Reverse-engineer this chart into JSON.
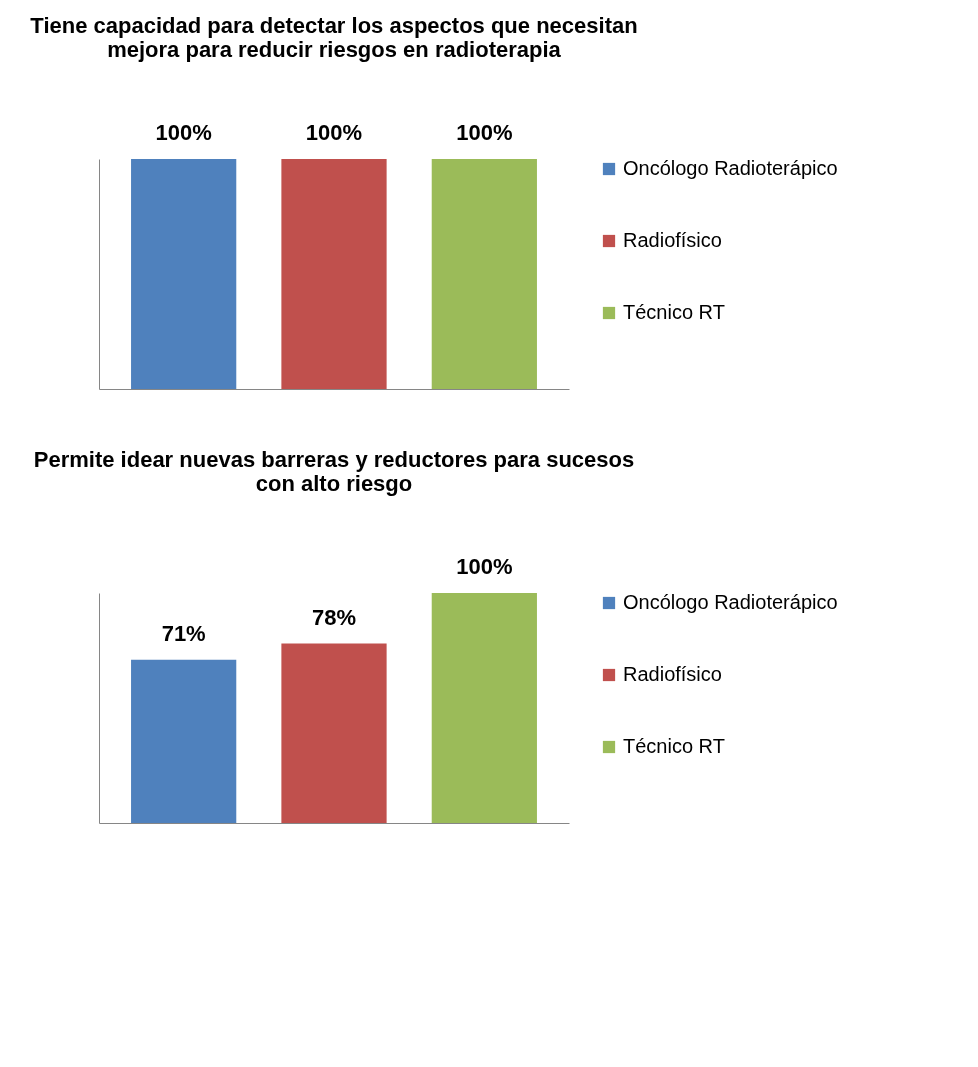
{
  "chart_data": [
    {
      "type": "bar",
      "title": "Tiene capacidad para detectar los aspectos que necesitan mejora para reducir riesgos en radioterapia",
      "categories": [
        null
      ],
      "ylim": [
        0,
        100
      ],
      "tick_labels": false,
      "legend": "right",
      "series": [
        {
          "name": "Oncólogo Radioterápico",
          "color": "#4f81bd",
          "values": [
            100
          ],
          "value_labels": [
            "100%"
          ]
        },
        {
          "name": "Radiofísico",
          "color": "#c0504d",
          "values": [
            100
          ],
          "value_labels": [
            "100%"
          ]
        },
        {
          "name": "Técnico RT",
          "color": "#9bbb59",
          "values": [
            100
          ],
          "value_labels": [
            "100%"
          ]
        }
      ]
    },
    {
      "type": "bar",
      "title": "Permite idear nuevas barreras y reductores para sucesos con alto riesgo",
      "categories": [
        null
      ],
      "ylim": [
        0,
        100
      ],
      "tick_labels": false,
      "legend": "right",
      "series": [
        {
          "name": "Oncólogo Radioterápico",
          "color": "#4f81bd",
          "values": [
            71
          ],
          "value_labels": [
            "71%"
          ]
        },
        {
          "name": "Radiofísico",
          "color": "#c0504d",
          "values": [
            78
          ],
          "value_labels": [
            "78%"
          ]
        },
        {
          "name": "Técnico RT",
          "color": "#9bbb59",
          "values": [
            100
          ],
          "value_labels": [
            "100%"
          ]
        }
      ]
    }
  ]
}
